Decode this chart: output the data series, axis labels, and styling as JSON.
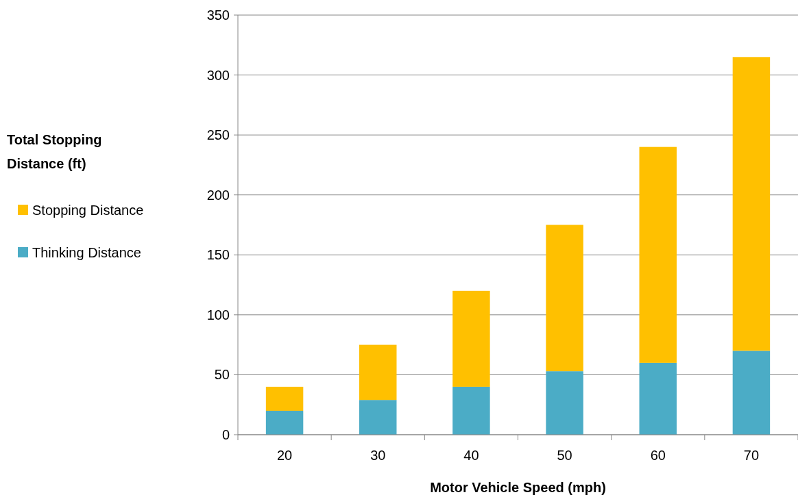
{
  "chart_data": {
    "type": "bar",
    "stacked": true,
    "xlabel": "Motor Vehicle Speed (mph)",
    "annotations": [
      "Total Stopping Distance (ft)"
    ],
    "categories": [
      "20",
      "30",
      "40",
      "50",
      "60",
      "70"
    ],
    "series": [
      {
        "name": "Thinking Distance",
        "color": "#4bacc6",
        "values": [
          20,
          29,
          40,
          53,
          60,
          70
        ]
      },
      {
        "name": "Stopping Distance",
        "color": "#ffc000",
        "values": [
          20,
          46,
          80,
          122,
          180,
          245
        ]
      }
    ],
    "ylim": [
      0,
      350
    ],
    "yticks": [
      0,
      50,
      100,
      150,
      200,
      250,
      300,
      350
    ],
    "grid": "y",
    "legend": "left"
  }
}
